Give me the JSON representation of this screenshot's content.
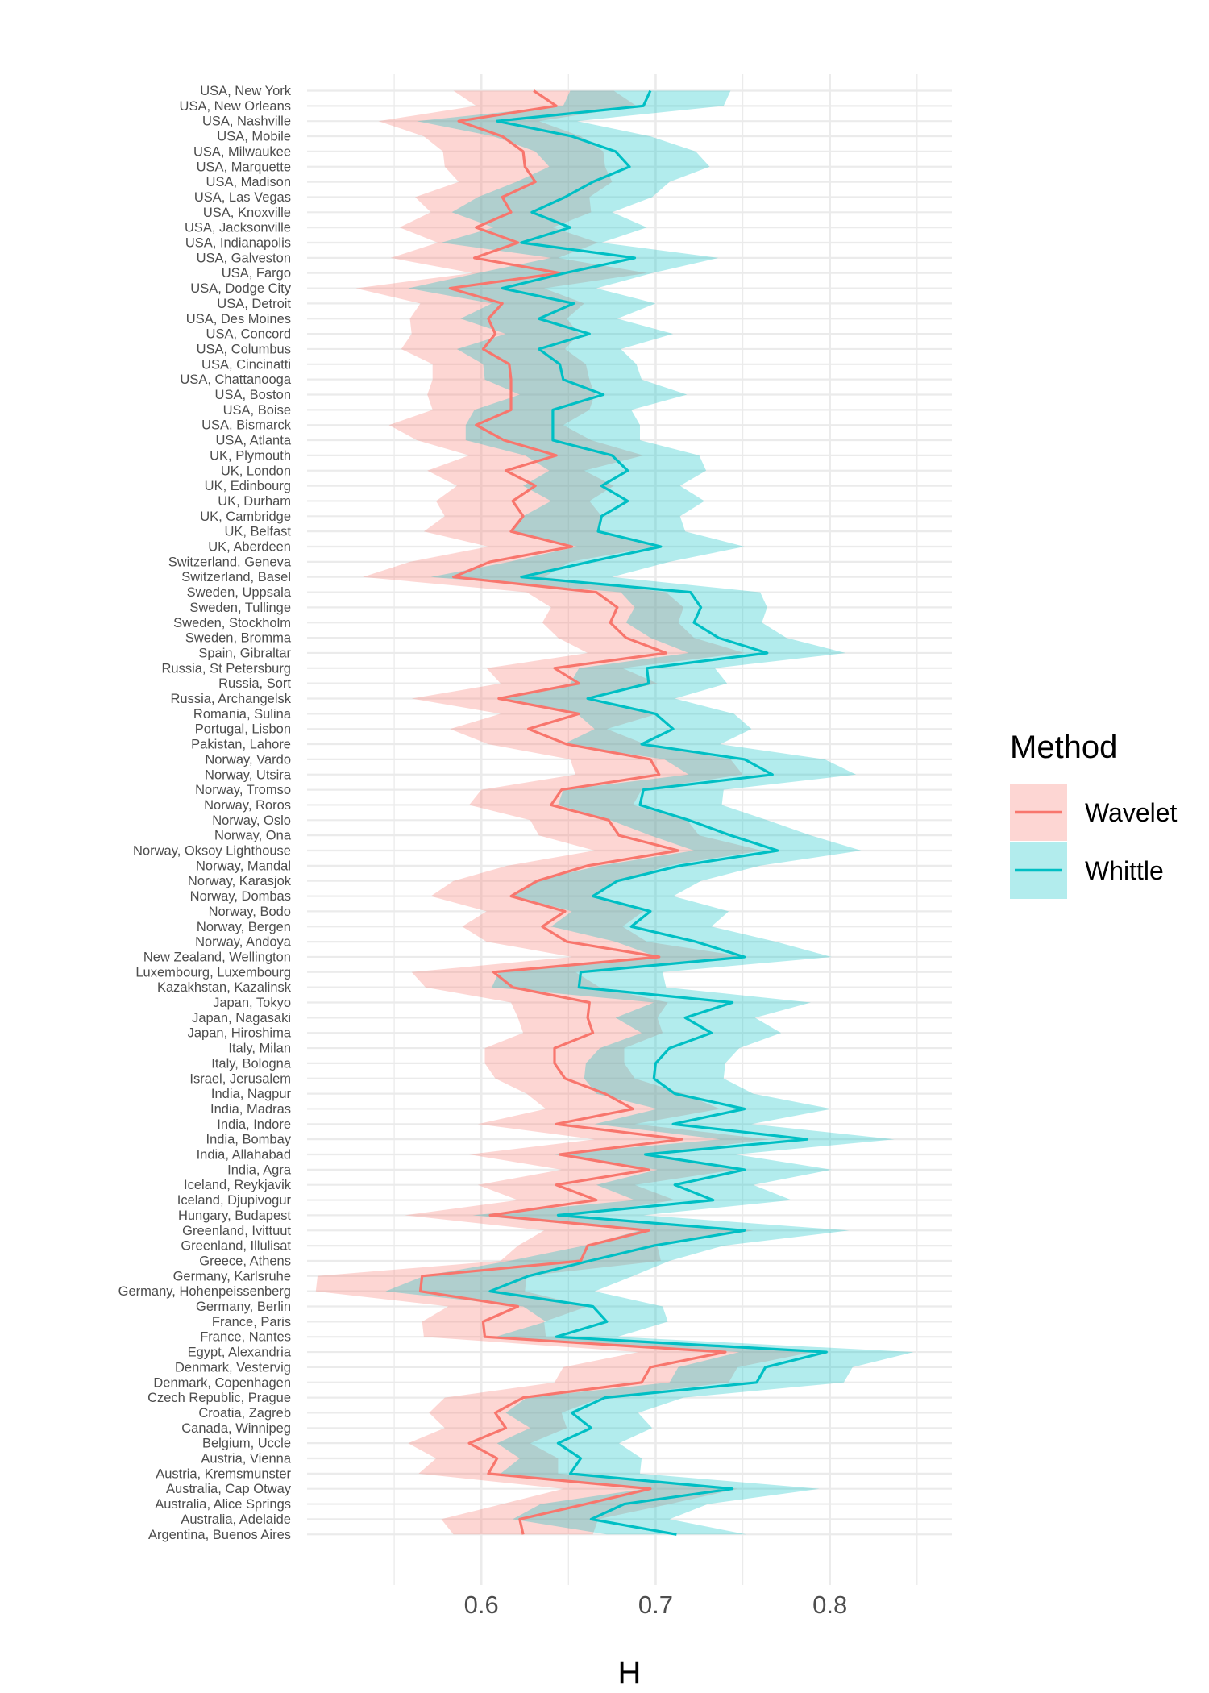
{
  "chart_data": {
    "type": "line",
    "orientation": "horizontal",
    "title": "",
    "xlabel": "H",
    "ylabel": "",
    "xlim": [
      0.5,
      0.87
    ],
    "xticks": [
      0.6,
      0.7,
      0.8
    ],
    "grid": true,
    "legend": {
      "title": "Method",
      "position": "right"
    },
    "categories": [
      "USA, New York",
      "USA, New Orleans",
      "USA, Nashville",
      "USA, Mobile",
      "USA, Milwaukee",
      "USA, Marquette",
      "USA, Madison",
      "USA, Las Vegas",
      "USA, Knoxville",
      "USA, Jacksonville",
      "USA, Indianapolis",
      "USA, Galveston",
      "USA, Fargo",
      "USA, Dodge City",
      "USA, Detroit",
      "USA, Des Moines",
      "USA, Concord",
      "USA, Columbus",
      "USA, Cincinatti",
      "USA, Chattanooga",
      "USA, Boston",
      "USA, Boise",
      "USA, Bismarck",
      "USA, Atlanta",
      "UK, Plymouth",
      "UK, London",
      "UK, Edinbourg",
      "UK, Durham",
      "UK, Cambridge",
      "UK, Belfast",
      "UK, Aberdeen",
      "Switzerland, Geneva",
      "Switzerland, Basel",
      "Sweden, Uppsala",
      "Sweden, Tullinge",
      "Sweden, Stockholm",
      "Sweden, Bromma",
      "Spain, Gibraltar",
      "Russia, St Petersburg",
      "Russia, Sort",
      "Russia, Archangelsk",
      "Romania, Sulina",
      "Portugal, Lisbon",
      "Pakistan, Lahore",
      "Norway, Vardo",
      "Norway, Utsira",
      "Norway, Tromso",
      "Norway, Roros",
      "Norway, Oslo",
      "Norway, Ona",
      "Norway, Oksoy Lighthouse",
      "Norway, Mandal",
      "Norway, Karasjok",
      "Norway, Dombas",
      "Norway, Bodo",
      "Norway, Bergen",
      "Norway, Andoya",
      "New Zealand, Wellington",
      "Luxembourg, Luxembourg",
      "Kazakhstan, Kazalinsk",
      "Japan, Tokyo",
      "Japan, Nagasaki",
      "Japan, Hiroshima",
      "Italy, Milan",
      "Italy, Bologna",
      "Israel, Jerusalem",
      "India, Nagpur",
      "India, Madras",
      "India, Indore",
      "India, Bombay",
      "India, Allahabad",
      "India, Agra",
      "Iceland, Reykjavik",
      "Iceland, Djupivogur",
      "Hungary, Budapest",
      "Greenland, Ivittuut",
      "Greenland, Illulisat",
      "Greece, Athens",
      "Germany, Karlsruhe",
      "Germany, Hohenpeissenberg",
      "Germany, Berlin",
      "France, Paris",
      "France, Nantes",
      "Egypt, Alexandria",
      "Denmark, Vestervig",
      "Denmark, Copenhagen",
      "Czech Republic, Prague",
      "Croatia, Zagreb",
      "Canada, Winnipeg",
      "Belgium, Uccle",
      "Austria, Vienna",
      "Austria, Kremsmunster",
      "Australia, Cap Otway",
      "Australia, Alice Springs",
      "Australia, Adelaide",
      "Argentina, Buenos Aires"
    ],
    "band_halfwidth": [
      0.046,
      0.046,
      0.046,
      0.045,
      0.046,
      0.046,
      0.044,
      0.05,
      0.046,
      0.044,
      0.046,
      0.048,
      0.05,
      0.054,
      0.047,
      0.045,
      0.048,
      0.047,
      0.044,
      0.045,
      0.048,
      0.045,
      0.05,
      0.05,
      0.05,
      0.045,
      0.045,
      0.044,
      0.045,
      0.05,
      0.048,
      0.046,
      0.052,
      0.04,
      0.038,
      0.039,
      0.039,
      0.045,
      0.039,
      0.045,
      0.05,
      0.045,
      0.045,
      0.045,
      0.046,
      0.048,
      0.046,
      0.047,
      0.045,
      0.046,
      0.048,
      0.046,
      0.048,
      0.046,
      0.045,
      0.046,
      0.046,
      0.05,
      0.047,
      0.05,
      0.045,
      0.04,
      0.04,
      0.04,
      0.04,
      0.04,
      0.045,
      0.05,
      0.045,
      0.05,
      0.052,
      0.05,
      0.045,
      0.045,
      0.049,
      0.06,
      0.04,
      0.046,
      0.06,
      0.06,
      0.04,
      0.035,
      0.035,
      0.05,
      0.05,
      0.05,
      0.045,
      0.038,
      0.035,
      0.035,
      0.035,
      0.04,
      0.05,
      0.048,
      0.045,
      0.04
    ],
    "series": [
      {
        "name": "Wavelet",
        "color": "#F8766D",
        "values": [
          0.63,
          0.643,
          0.587,
          0.612,
          0.624,
          0.625,
          0.631,
          0.612,
          0.617,
          0.597,
          0.621,
          0.596,
          0.645,
          0.582,
          0.612,
          0.604,
          0.608,
          0.601,
          0.616,
          0.617,
          0.617,
          0.617,
          0.597,
          0.613,
          0.643,
          0.614,
          0.631,
          0.618,
          0.624,
          0.617,
          0.652,
          0.605,
          0.584,
          0.666,
          0.678,
          0.674,
          0.683,
          0.706,
          0.642,
          0.656,
          0.61,
          0.656,
          0.627,
          0.649,
          0.697,
          0.702,
          0.646,
          0.64,
          0.673,
          0.679,
          0.713,
          0.661,
          0.632,
          0.617,
          0.648,
          0.635,
          0.649,
          0.702,
          0.607,
          0.618,
          0.662,
          0.661,
          0.664,
          0.642,
          0.642,
          0.648,
          0.671,
          0.687,
          0.643,
          0.715,
          0.645,
          0.696,
          0.643,
          0.666,
          0.605,
          0.696,
          0.661,
          0.657,
          0.566,
          0.565,
          0.621,
          0.601,
          0.602,
          0.74,
          0.697,
          0.692,
          0.624,
          0.608,
          0.614,
          0.593,
          0.609,
          0.604,
          0.697,
          0.66,
          0.622,
          0.624
        ]
      },
      {
        "name": "Whittle",
        "color": "#00BFC4",
        "values": [
          0.697,
          0.693,
          0.609,
          0.652,
          0.677,
          0.685,
          0.664,
          0.648,
          0.629,
          0.651,
          0.623,
          0.688,
          0.648,
          0.612,
          0.653,
          0.633,
          0.662,
          0.633,
          0.645,
          0.647,
          0.67,
          0.641,
          0.641,
          0.641,
          0.675,
          0.684,
          0.669,
          0.684,
          0.669,
          0.667,
          0.703,
          0.662,
          0.623,
          0.72,
          0.726,
          0.722,
          0.736,
          0.764,
          0.695,
          0.696,
          0.661,
          0.7,
          0.71,
          0.692,
          0.751,
          0.767,
          0.693,
          0.691,
          0.719,
          0.743,
          0.77,
          0.714,
          0.678,
          0.664,
          0.697,
          0.686,
          0.723,
          0.751,
          0.657,
          0.656,
          0.744,
          0.717,
          0.732,
          0.708,
          0.7,
          0.699,
          0.711,
          0.751,
          0.71,
          0.787,
          0.694,
          0.751,
          0.711,
          0.733,
          0.644,
          0.751,
          0.699,
          0.662,
          0.627,
          0.605,
          0.664,
          0.672,
          0.643,
          0.798,
          0.763,
          0.758,
          0.671,
          0.652,
          0.663,
          0.644,
          0.657,
          0.651,
          0.744,
          0.682,
          0.663,
          0.712
        ]
      }
    ]
  }
}
